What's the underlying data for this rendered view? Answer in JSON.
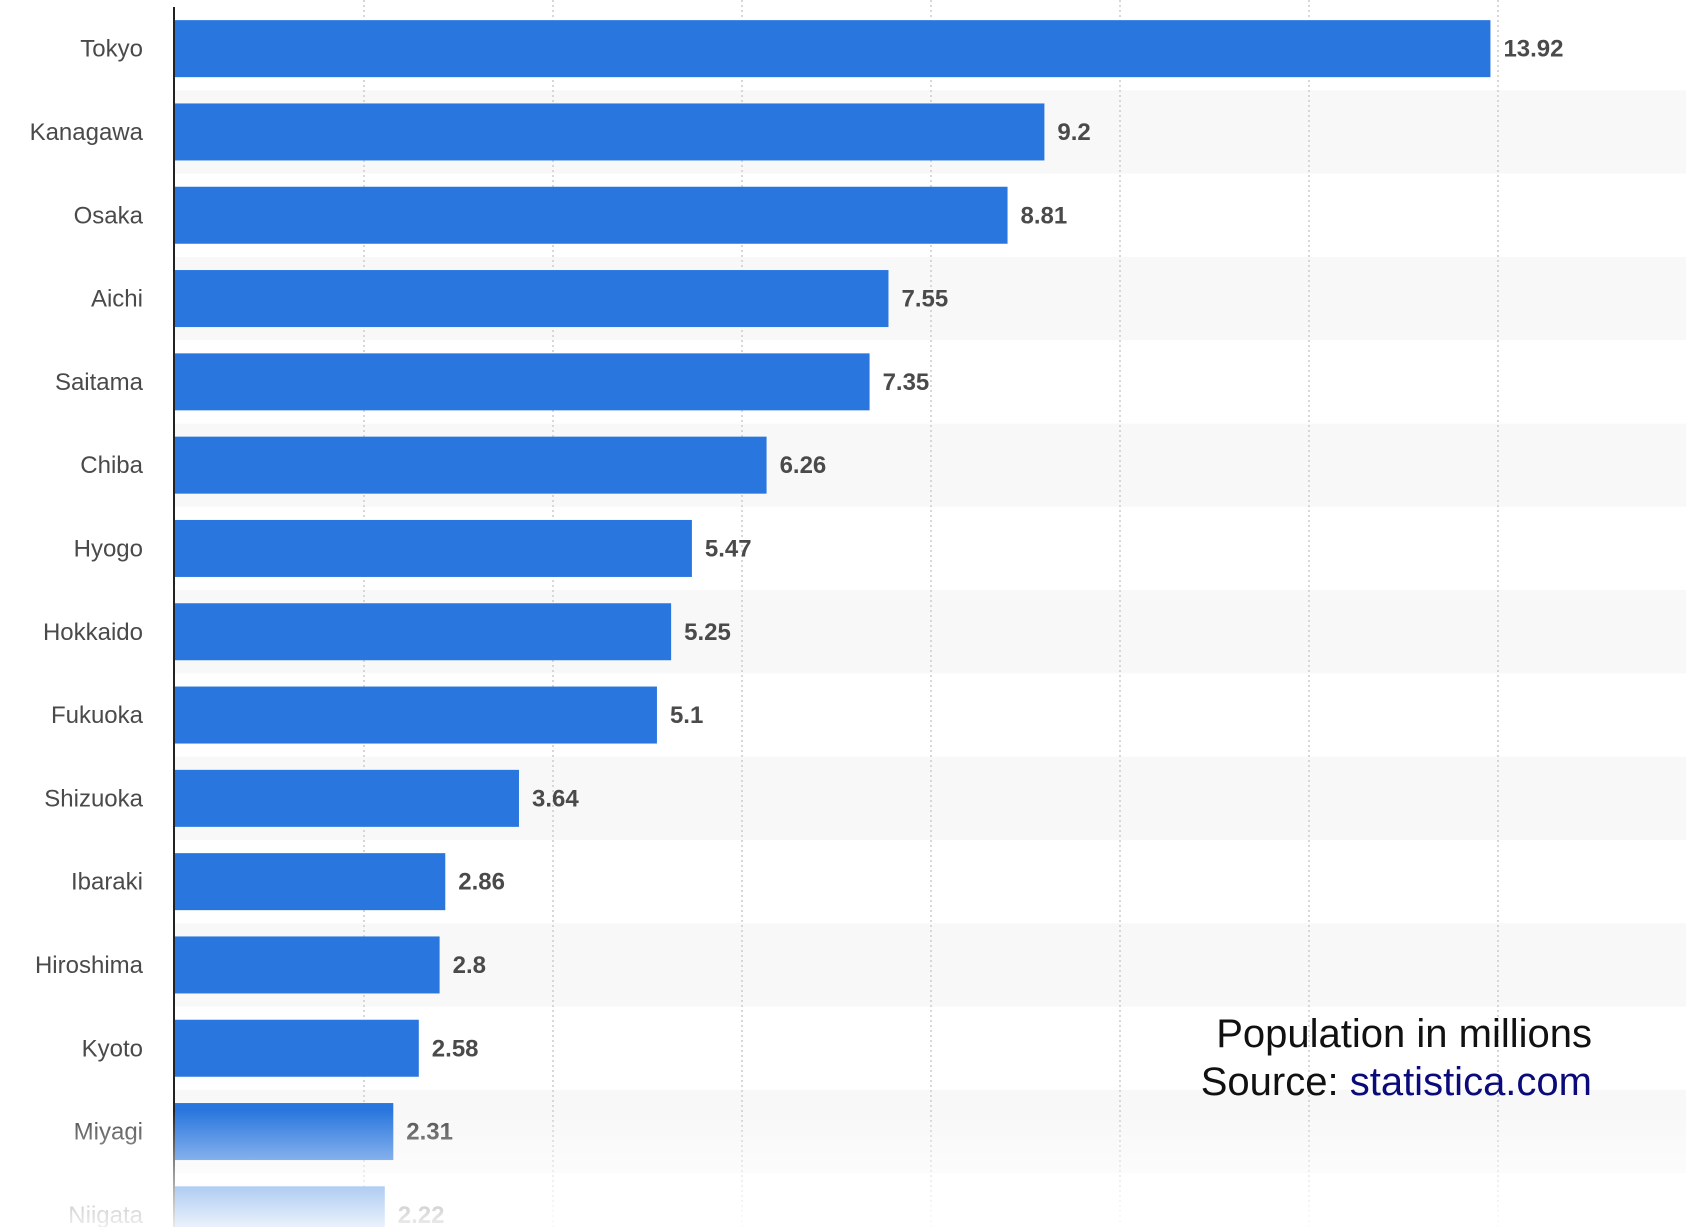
{
  "chart_data": {
    "type": "bar",
    "orientation": "horizontal",
    "categories": [
      "Tokyo",
      "Kanagawa",
      "Osaka",
      "Aichi",
      "Saitama",
      "Chiba",
      "Hyogo",
      "Hokkaido",
      "Fukuoka",
      "Shizuoka",
      "Ibaraki",
      "Hiroshima",
      "Kyoto",
      "Miyagi",
      "Niigata"
    ],
    "values": [
      13.92,
      9.2,
      8.81,
      7.55,
      7.35,
      6.26,
      5.47,
      5.25,
      5.1,
      3.64,
      2.86,
      2.8,
      2.58,
      2.31,
      2.22
    ],
    "value_labels": [
      "13.92",
      "9.2",
      "8.81",
      "7.55",
      "7.35",
      "6.26",
      "5.47",
      "5.25",
      "5.1",
      "3.64",
      "2.86",
      "2.8",
      "2.58",
      "2.31",
      "2.22"
    ],
    "xlim": [
      0,
      16
    ],
    "grid": true,
    "bar_color": "#2976de",
    "label_color": "#4a4a4a",
    "stripe_color": "#f8f8f8"
  },
  "note": {
    "line1": "Population in millions",
    "source_prefix": "Source: ",
    "source_link": "statistica.com"
  }
}
